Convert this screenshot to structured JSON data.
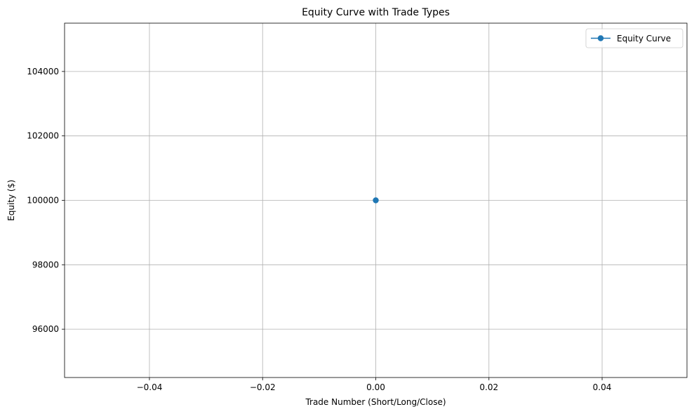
{
  "chart_data": {
    "type": "line",
    "title": "Equity Curve with Trade Types",
    "xlabel": "Trade Number (Short/Long/Close)",
    "ylabel": "Equity ($)",
    "xlim": [
      -0.055,
      0.055
    ],
    "ylim": [
      94500,
      105500
    ],
    "xticks": [
      -0.04,
      -0.02,
      0.0,
      0.02,
      0.04
    ],
    "xtick_labels": [
      "−0.04",
      "−0.02",
      "0.00",
      "0.02",
      "0.04"
    ],
    "yticks": [
      96000,
      98000,
      100000,
      102000,
      104000
    ],
    "ytick_labels": [
      "96000",
      "98000",
      "100000",
      "102000",
      "104000"
    ],
    "grid": true,
    "legend_position": "top-right",
    "series": [
      {
        "name": "Equity Curve",
        "color": "#1f77b4",
        "marker": "circle",
        "x": [
          0
        ],
        "y": [
          100000
        ]
      }
    ]
  }
}
